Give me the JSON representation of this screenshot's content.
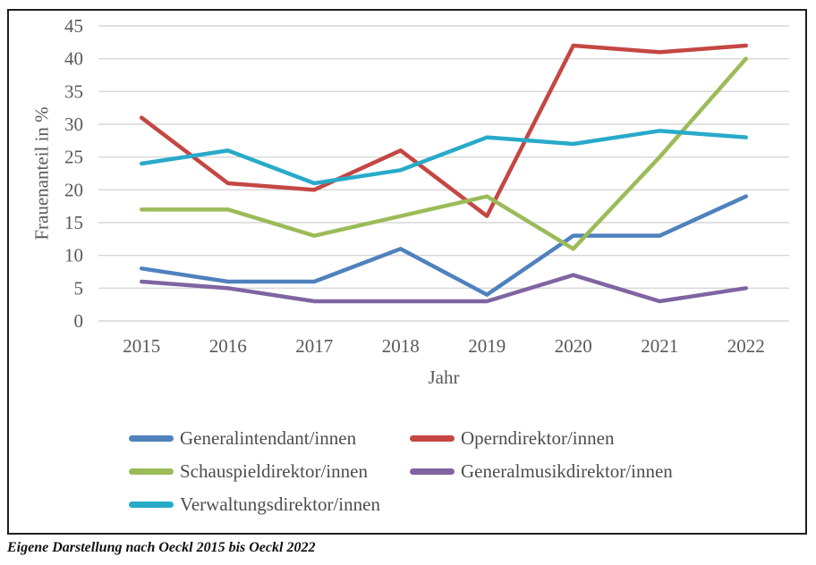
{
  "caption": "Eigene Darstellung nach Oeckl 2015 bis Oeckl 2022",
  "colors": {
    "gridline": "#d7d7d7",
    "axis_text": "#595959",
    "legend_text": "#4d4d4d",
    "frame_border": "#1f1f1f",
    "caption_text": "#111111"
  },
  "chart_data": {
    "type": "line",
    "title": "",
    "xlabel": "Jahr",
    "ylabel": "Frauenanteil in %",
    "categories": [
      "2015",
      "2016",
      "2017",
      "2018",
      "2019",
      "2020",
      "2021",
      "2022"
    ],
    "yticks": [
      45,
      40,
      35,
      30,
      25,
      20,
      15,
      10,
      5,
      0
    ],
    "ylim": [
      0,
      45
    ],
    "ytick_step": 5,
    "grid": "horizontal",
    "legend_position": "bottom",
    "series": [
      {
        "name": "Generalintendant/innen",
        "color": "#4F81BD",
        "values": [
          8,
          6,
          6,
          11,
          4,
          13,
          13,
          19
        ]
      },
      {
        "name": "Operndirektor/innen",
        "color": "#C44743",
        "values": [
          31,
          21,
          20,
          26,
          16,
          42,
          41,
          42
        ]
      },
      {
        "name": "Schauspieldirektor/innen",
        "color": "#9BBB59",
        "values": [
          17,
          17,
          13,
          16,
          19,
          11,
          25,
          40
        ]
      },
      {
        "name": "Generalmusikdirektor/innen",
        "color": "#8064A2",
        "values": [
          6,
          5,
          3,
          3,
          3,
          7,
          3,
          5
        ]
      },
      {
        "name": "Verwaltungsdirektor/innen",
        "color": "#28AAC9",
        "values": [
          24,
          26,
          21,
          23,
          28,
          27,
          29,
          28
        ]
      }
    ]
  }
}
